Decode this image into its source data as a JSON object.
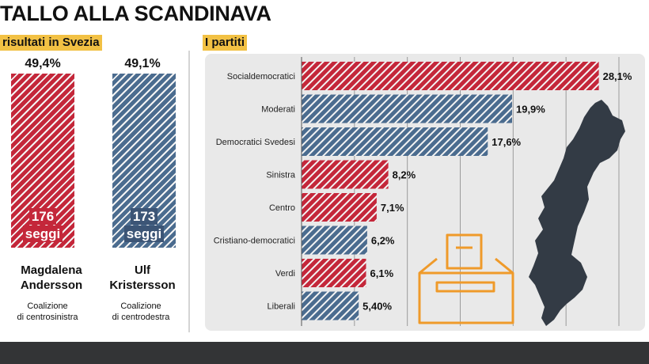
{
  "title": "TALLO ALLA SCANDINAVA",
  "left_heading": "risultati in Svezia",
  "right_heading": "I partiti",
  "candidates": [
    {
      "pct": "49,4%",
      "seats": "176",
      "seats_label": "seggi",
      "name_line1": "Magdalena",
      "name_line2": "Andersson",
      "coalition_line1": "Coalizione",
      "coalition_line2": "di centrosinistra",
      "color": "#c4273a"
    },
    {
      "pct": "49,1%",
      "seats": "173",
      "seats_label": "seggi",
      "name_line1": "Ulf",
      "name_line2": "Kristersson",
      "coalition_line1": "Coalizione",
      "coalition_line2": "di centrodestra",
      "color": "#4b6c8f"
    }
  ],
  "icons": [
    "ballot-box-icon",
    "sweden-map-icon"
  ],
  "chart_data": {
    "type": "bar",
    "orientation": "horizontal",
    "categories": [
      "Socialdemocratici",
      "Moderati",
      "Democratici Svedesi",
      "Sinistra",
      "Centro",
      "Cristiano-democratici",
      "Verdi",
      "Liberali"
    ],
    "values": [
      28.1,
      19.9,
      17.6,
      8.2,
      7.1,
      6.2,
      6.1,
      5.4
    ],
    "value_labels": [
      "28,1%",
      "19,9%",
      "17,6%",
      "8,2%",
      "7,1%",
      "6,2%",
      "6,1%",
      "5,40%"
    ],
    "bar_colors": [
      "#c4273a",
      "#4b6c8f",
      "#4b6c8f",
      "#c4273a",
      "#c4273a",
      "#4b6c8f",
      "#c4273a",
      "#4b6c8f"
    ],
    "xlim": [
      0,
      30
    ],
    "grid": true
  }
}
